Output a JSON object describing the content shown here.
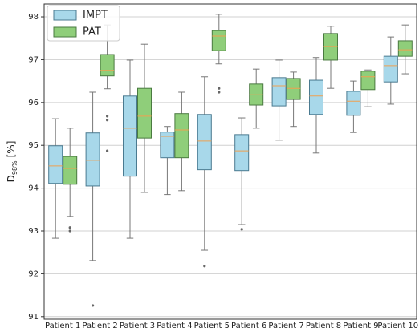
{
  "chart_data": {
    "type": "boxplot",
    "y_label_parts": [
      "D",
      "98%",
      "[%]"
    ],
    "categories": [
      "Patient 1",
      "Patient 2",
      "Patient 3",
      "Patient 4",
      "Patient 5",
      "Patient 6",
      "Patient 7",
      "Patient 8",
      "Patient 9",
      "Patient 10"
    ],
    "ylim": [
      90.94,
      98.3
    ],
    "yticks": [
      91,
      92,
      93,
      94,
      95,
      96,
      97,
      98
    ],
    "grid": true,
    "legend": "upper-left",
    "median_color": "#f0a050",
    "series": [
      {
        "name": "IMPT",
        "color": "#a8d8ea",
        "edge": "#4a7a90",
        "boxes": [
          {
            "low": 92.83,
            "q1": 94.11,
            "median": 94.52,
            "q3": 94.99,
            "high": 95.62,
            "outliers": []
          },
          {
            "low": 92.31,
            "q1": 94.05,
            "median": 94.65,
            "q3": 95.29,
            "high": 96.24,
            "outliers": [
              91.26
            ]
          },
          {
            "low": 92.83,
            "q1": 94.28,
            "median": 95.4,
            "q3": 96.15,
            "high": 96.99,
            "outliers": []
          },
          {
            "low": 93.85,
            "q1": 94.71,
            "median": 95.21,
            "q3": 95.31,
            "high": 95.44,
            "outliers": []
          },
          {
            "low": 92.55,
            "q1": 94.43,
            "median": 95.1,
            "q3": 95.72,
            "high": 96.6,
            "outliers": [
              92.18
            ]
          },
          {
            "low": 93.15,
            "q1": 94.41,
            "median": 94.87,
            "q3": 95.25,
            "high": 95.64,
            "outliers": [
              93.04
            ]
          },
          {
            "low": 95.12,
            "q1": 95.92,
            "median": 96.39,
            "q3": 96.58,
            "high": 96.99,
            "outliers": []
          },
          {
            "low": 94.82,
            "q1": 95.72,
            "median": 96.15,
            "q3": 96.52,
            "high": 97.05,
            "outliers": []
          },
          {
            "low": 95.3,
            "q1": 95.7,
            "median": 96.03,
            "q3": 96.26,
            "high": 96.5,
            "outliers": []
          },
          {
            "low": 95.96,
            "q1": 96.48,
            "median": 96.86,
            "q3": 97.08,
            "high": 97.53,
            "outliers": []
          }
        ]
      },
      {
        "name": "PAT",
        "color": "#8fce7a",
        "edge": "#4a7a40",
        "boxes": [
          {
            "low": 93.34,
            "q1": 94.09,
            "median": 94.46,
            "q3": 94.74,
            "high": 95.4,
            "outliers": [
              93.08,
              93.0
            ]
          },
          {
            "low": 96.32,
            "q1": 96.62,
            "median": 96.75,
            "q3": 97.12,
            "high": 97.81,
            "outliers": [
              95.68,
              95.59,
              94.87
            ]
          },
          {
            "low": 93.9,
            "q1": 95.17,
            "median": 95.68,
            "q3": 96.33,
            "high": 97.36,
            "outliers": []
          },
          {
            "low": 93.94,
            "q1": 94.71,
            "median": 95.36,
            "q3": 95.74,
            "high": 96.24,
            "outliers": []
          },
          {
            "low": 96.9,
            "q1": 97.21,
            "median": 97.55,
            "q3": 97.68,
            "high": 98.06,
            "outliers": [
              96.33,
              96.24
            ]
          },
          {
            "low": 95.4,
            "q1": 95.94,
            "median": 96.18,
            "q3": 96.43,
            "high": 96.78,
            "outliers": []
          },
          {
            "low": 95.44,
            "q1": 96.07,
            "median": 96.33,
            "q3": 96.56,
            "high": 96.71,
            "outliers": []
          },
          {
            "low": 96.33,
            "q1": 96.99,
            "median": 97.31,
            "q3": 97.61,
            "high": 97.78,
            "outliers": []
          },
          {
            "low": 95.9,
            "q1": 96.3,
            "median": 96.6,
            "q3": 96.73,
            "high": 96.76,
            "outliers": []
          },
          {
            "low": 96.67,
            "q1": 97.08,
            "median": 97.23,
            "q3": 97.44,
            "high": 97.81,
            "outliers": []
          }
        ]
      }
    ]
  }
}
